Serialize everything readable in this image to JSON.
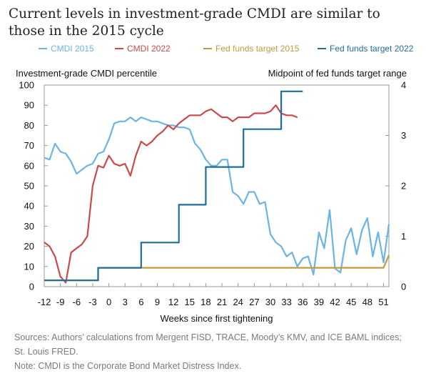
{
  "title": "Current levels in investment-grade CMDI are similar to those in the 2015 cycle",
  "sources": "Sources: Authors’ calculations from Mergent FISD, TRACE, Moody’s KMV, and ICE BAML indices; St. Louis FRED.",
  "note": "Note: CMDI is the Corporate Bond Market Distress Index.",
  "chart_data": {
    "type": "line",
    "xlabel": "Weeks since first tightening",
    "ylabel": "Investment-grade CMDI percentile",
    "ylabel_right": "Midpoint of fed funds target range",
    "xlim": [
      -12,
      52
    ],
    "ylim": [
      0,
      100
    ],
    "ylim_right": [
      0,
      4
    ],
    "x_ticks": [
      -12,
      -9,
      -6,
      -3,
      0,
      3,
      6,
      9,
      12,
      15,
      18,
      21,
      24,
      27,
      30,
      33,
      36,
      39,
      42,
      45,
      48,
      51
    ],
    "y_ticks": [
      0,
      10,
      20,
      30,
      40,
      50,
      60,
      70,
      80,
      90,
      100
    ],
    "y_ticks_right": [
      0,
      1,
      2,
      3,
      4
    ],
    "legend_position": "top",
    "grid": false,
    "series": [
      {
        "name": "CMDI 2015",
        "axis": "left",
        "color": "#6cb4e4",
        "points": [
          [
            -12,
            64
          ],
          [
            -11,
            63
          ],
          [
            -10,
            71
          ],
          [
            -9,
            67
          ],
          [
            -8,
            66
          ],
          [
            -7,
            62
          ],
          [
            -6,
            56
          ],
          [
            -5,
            58
          ],
          [
            -4,
            60
          ],
          [
            -3,
            61
          ],
          [
            -2,
            66
          ],
          [
            -1,
            67
          ],
          [
            0,
            73
          ],
          [
            1,
            81
          ],
          [
            2,
            82
          ],
          [
            3,
            82
          ],
          [
            4,
            84
          ],
          [
            5,
            82
          ],
          [
            6,
            84
          ],
          [
            7,
            83
          ],
          [
            8,
            82
          ],
          [
            9,
            82
          ],
          [
            10,
            81
          ],
          [
            11,
            80
          ],
          [
            12,
            80
          ],
          [
            13,
            79
          ],
          [
            14,
            79
          ],
          [
            15,
            78
          ],
          [
            16,
            71
          ],
          [
            17,
            68
          ],
          [
            18,
            63
          ],
          [
            19,
            60
          ],
          [
            20,
            60
          ],
          [
            21,
            63
          ],
          [
            22,
            63
          ],
          [
            23,
            47
          ],
          [
            24,
            45
          ],
          [
            25,
            41
          ],
          [
            26,
            47
          ],
          [
            27,
            47
          ],
          [
            28,
            41
          ],
          [
            29,
            42
          ],
          [
            30,
            26
          ],
          [
            31,
            22
          ],
          [
            32,
            20
          ],
          [
            33,
            15
          ],
          [
            34,
            17
          ],
          [
            35,
            10
          ],
          [
            36,
            14
          ],
          [
            37,
            15
          ],
          [
            38,
            6
          ],
          [
            39,
            27
          ],
          [
            40,
            19
          ],
          [
            41,
            38
          ],
          [
            42,
            9
          ],
          [
            43,
            7
          ],
          [
            44,
            23
          ],
          [
            45,
            29
          ],
          [
            46,
            16
          ],
          [
            47,
            28
          ],
          [
            48,
            34
          ],
          [
            49,
            15
          ],
          [
            50,
            27
          ],
          [
            51,
            12
          ],
          [
            52,
            31
          ]
        ]
      },
      {
        "name": "CMDI 2022",
        "axis": "left",
        "color": "#c94a4a",
        "points": [
          [
            -12,
            22
          ],
          [
            -11,
            20
          ],
          [
            -10,
            15
          ],
          [
            -9,
            5
          ],
          [
            -8,
            2
          ],
          [
            -7,
            17
          ],
          [
            -6,
            19
          ],
          [
            -5,
            21
          ],
          [
            -4,
            25
          ],
          [
            -3,
            50
          ],
          [
            -2,
            60
          ],
          [
            -1,
            59
          ],
          [
            0,
            65
          ],
          [
            1,
            61
          ],
          [
            2,
            60
          ],
          [
            3,
            61
          ],
          [
            4,
            55
          ],
          [
            5,
            65
          ],
          [
            6,
            72
          ],
          [
            7,
            70
          ],
          [
            8,
            72
          ],
          [
            9,
            75
          ],
          [
            10,
            77
          ],
          [
            11,
            80
          ],
          [
            12,
            78
          ],
          [
            13,
            81
          ],
          [
            14,
            83
          ],
          [
            15,
            85
          ],
          [
            16,
            85
          ],
          [
            17,
            85
          ],
          [
            18,
            87
          ],
          [
            19,
            88
          ],
          [
            20,
            86
          ],
          [
            21,
            84
          ],
          [
            22,
            84
          ],
          [
            23,
            82
          ],
          [
            24,
            84
          ],
          [
            25,
            84
          ],
          [
            26,
            84
          ],
          [
            27,
            86
          ],
          [
            28,
            86
          ],
          [
            29,
            86
          ],
          [
            30,
            87
          ],
          [
            31,
            90
          ],
          [
            32,
            86
          ],
          [
            33,
            85
          ],
          [
            34,
            85
          ],
          [
            35,
            84
          ]
        ]
      },
      {
        "name": "Fed funds target 2015",
        "axis": "right",
        "color": "#c49a3c",
        "points": [
          [
            -12,
            0.125
          ],
          [
            -2,
            0.125
          ],
          [
            -2,
            0.375
          ],
          [
            51,
            0.375
          ],
          [
            52,
            0.625
          ]
        ]
      },
      {
        "name": "Fed funds target 2022",
        "axis": "right",
        "color": "#1f6e99",
        "points": [
          [
            -12,
            0.125
          ],
          [
            -2,
            0.125
          ],
          [
            -2,
            0.375
          ],
          [
            6,
            0.375
          ],
          [
            6,
            0.875
          ],
          [
            13,
            0.875
          ],
          [
            13,
            1.625
          ],
          [
            18,
            1.625
          ],
          [
            18,
            2.375
          ],
          [
            25,
            2.375
          ],
          [
            25,
            3.125
          ],
          [
            32,
            3.125
          ],
          [
            32,
            3.875
          ],
          [
            36,
            3.875
          ]
        ]
      }
    ]
  }
}
